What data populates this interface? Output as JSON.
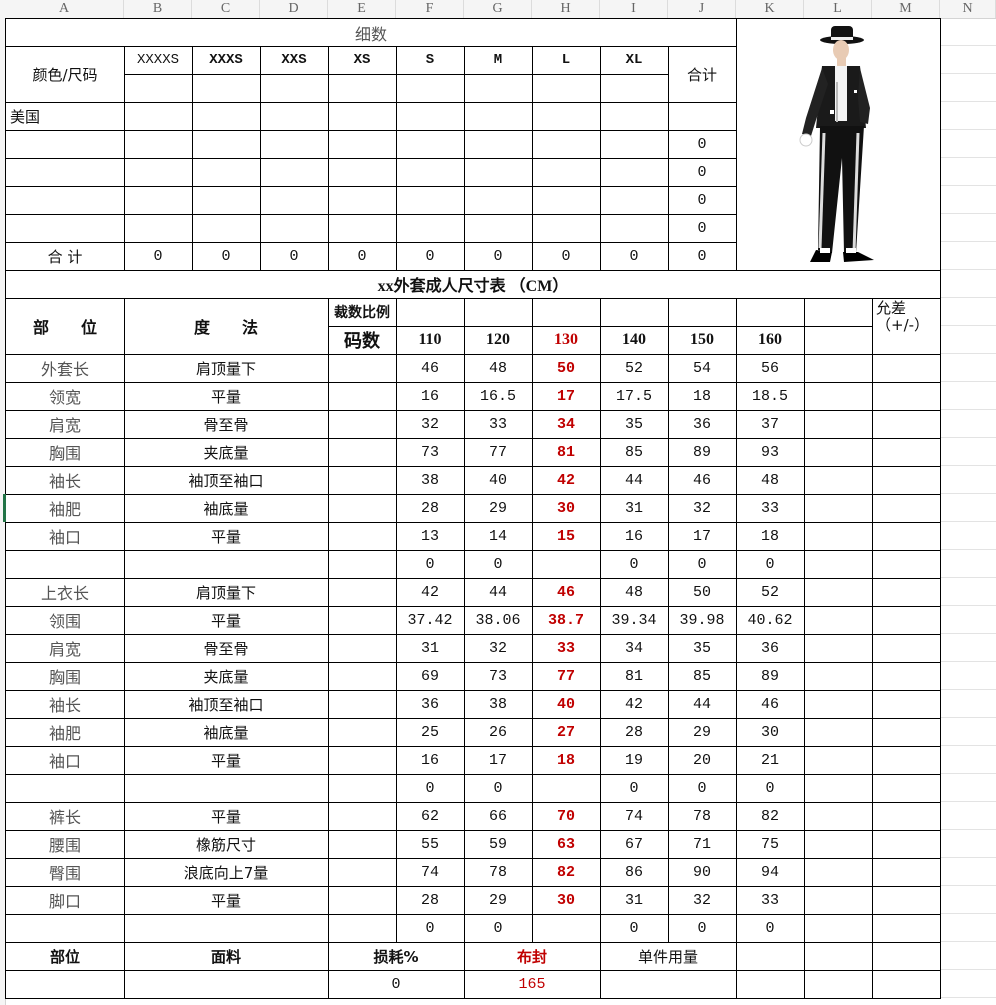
{
  "column_letters": [
    "A",
    "B",
    "C",
    "D",
    "E",
    "F",
    "G",
    "H",
    "I",
    "J",
    "K",
    "L",
    "M",
    "N"
  ],
  "top": {
    "title": "细数",
    "color_size_label": "颜色/尺码",
    "sizes": [
      "XXXXS",
      "XXXS",
      "XXS",
      "XS",
      "S",
      "M",
      "L",
      "XL"
    ],
    "total_label": "合计",
    "rows": [
      {
        "label": "美国",
        "total": ""
      },
      {
        "label": "",
        "total": "0"
      },
      {
        "label": "",
        "total": "0"
      },
      {
        "label": "",
        "total": "0"
      },
      {
        "label": "",
        "total": "0"
      }
    ],
    "sum_label": "合 计",
    "sums": [
      "0",
      "0",
      "0",
      "0",
      "0",
      "0",
      "0",
      "0",
      "0"
    ],
    "image": "product-photo-person-in-black-sequin-jacket"
  },
  "spec": {
    "title": "xx外套成人尺寸表 （CM）",
    "part_label": "部　　位",
    "method_label": "度　　法",
    "ratio_label": "裁数比例",
    "size_label": "码数",
    "sizes": [
      "110",
      "120",
      "130",
      "140",
      "150",
      "160"
    ],
    "tolerance_label": "允差（+/-）",
    "highlight_color": "#c00000",
    "rows": [
      {
        "part": "外套长",
        "method": "肩顶量下",
        "values": [
          "46",
          "48",
          "50",
          "52",
          "54",
          "56"
        ]
      },
      {
        "part": "领宽",
        "method": "平量",
        "values": [
          "16",
          "16.5",
          "17",
          "17.5",
          "18",
          "18.5"
        ]
      },
      {
        "part": "肩宽",
        "method": "骨至骨",
        "values": [
          "32",
          "33",
          "34",
          "35",
          "36",
          "37"
        ]
      },
      {
        "part": "胸围",
        "method": "夹底量",
        "values": [
          "73",
          "77",
          "81",
          "85",
          "89",
          "93"
        ]
      },
      {
        "part": "袖长",
        "method": "袖顶至袖口",
        "values": [
          "38",
          "40",
          "42",
          "44",
          "46",
          "48"
        ]
      },
      {
        "part": "袖肥",
        "method": "袖底量",
        "values": [
          "28",
          "29",
          "30",
          "31",
          "32",
          "33"
        ]
      },
      {
        "part": "袖口",
        "method": "平量",
        "values": [
          "13",
          "14",
          "15",
          "16",
          "17",
          "18"
        ]
      },
      {
        "part": "",
        "method": "",
        "values": [
          "0",
          "0",
          "",
          "0",
          "0",
          "0"
        ]
      },
      {
        "part": "上衣长",
        "method": "肩顶量下",
        "values": [
          "42",
          "44",
          "46",
          "48",
          "50",
          "52"
        ]
      },
      {
        "part": "领围",
        "method": "平量",
        "values": [
          "37.42",
          "38.06",
          "38.7",
          "39.34",
          "39.98",
          "40.62"
        ]
      },
      {
        "part": "肩宽",
        "method": "骨至骨",
        "values": [
          "31",
          "32",
          "33",
          "34",
          "35",
          "36"
        ]
      },
      {
        "part": "胸围",
        "method": "夹底量",
        "values": [
          "69",
          "73",
          "77",
          "81",
          "85",
          "89"
        ]
      },
      {
        "part": "袖长",
        "method": "袖顶至袖口",
        "values": [
          "36",
          "38",
          "40",
          "42",
          "44",
          "46"
        ]
      },
      {
        "part": "袖肥",
        "method": "袖底量",
        "values": [
          "25",
          "26",
          "27",
          "28",
          "29",
          "30"
        ]
      },
      {
        "part": "袖口",
        "method": "平量",
        "values": [
          "16",
          "17",
          "18",
          "19",
          "20",
          "21"
        ]
      },
      {
        "part": "",
        "method": "",
        "values": [
          "0",
          "0",
          "",
          "0",
          "0",
          "0"
        ]
      },
      {
        "part": "裤长",
        "method": "平量",
        "values": [
          "62",
          "66",
          "70",
          "74",
          "78",
          "82"
        ]
      },
      {
        "part": "腰围",
        "method": "橡筋尺寸",
        "values": [
          "55",
          "59",
          "63",
          "67",
          "71",
          "75"
        ]
      },
      {
        "part": "臀围",
        "method": "浪底向上7量",
        "values": [
          "74",
          "78",
          "82",
          "86",
          "90",
          "94"
        ]
      },
      {
        "part": "脚口",
        "method": "平量",
        "values": [
          "28",
          "29",
          "30",
          "31",
          "32",
          "33"
        ]
      },
      {
        "part": "",
        "method": "",
        "values": [
          "0",
          "0",
          "",
          "0",
          "0",
          "0"
        ]
      }
    ]
  },
  "bottom": {
    "part_label": "部位",
    "fabric_label": "面料",
    "loss_label": "损耗%",
    "width_label": "布封",
    "usage_label": "单件用量",
    "loss_value": "0",
    "width_value": "165"
  }
}
